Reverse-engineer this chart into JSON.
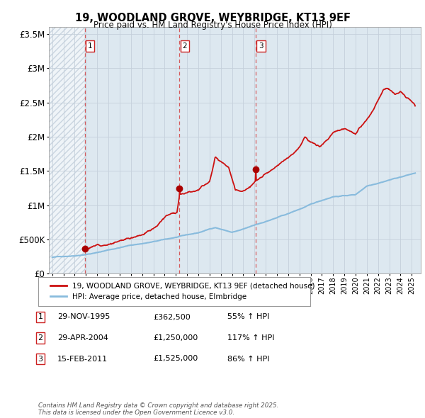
{
  "title": "19, WOODLAND GROVE, WEYBRIDGE, KT13 9EF",
  "subtitle": "Price paid vs. HM Land Registry's House Price Index (HPI)",
  "ylabel_ticks": [
    "£0",
    "£500K",
    "£1M",
    "£1.5M",
    "£2M",
    "£2.5M",
    "£3M",
    "£3.5M"
  ],
  "ytick_vals": [
    0,
    500000,
    1000000,
    1500000,
    2000000,
    2500000,
    3000000,
    3500000
  ],
  "ylim": [
    0,
    3600000
  ],
  "xlim_start": 1992.7,
  "xlim_end": 2025.8,
  "sale_dates_dec": [
    1995.91,
    2004.33,
    2011.12
  ],
  "sale_prices": [
    362500,
    1250000,
    1525000
  ],
  "sale_labels": [
    "1",
    "2",
    "3"
  ],
  "vline_color": "#d44444",
  "sale_dot_color": "#aa0000",
  "property_line_color": "#cc1111",
  "hpi_line_color": "#88bbdd",
  "legend_label_property": "19, WOODLAND GROVE, WEYBRIDGE, KT13 9EF (detached house)",
  "legend_label_hpi": "HPI: Average price, detached house, Elmbridge",
  "table_entries": [
    [
      "1",
      "29-NOV-1995",
      "£362,500",
      "55% ↑ HPI"
    ],
    [
      "2",
      "29-APR-2004",
      "£1,250,000",
      "117% ↑ HPI"
    ],
    [
      "3",
      "15-FEB-2011",
      "£1,525,000",
      "86% ↑ HPI"
    ]
  ],
  "footer": "Contains HM Land Registry data © Crown copyright and database right 2025.\nThis data is licensed under the Open Government Licence v3.0.",
  "background_color": "#ffffff",
  "grid_color": "#c5d0db",
  "plot_bg_color": "#dde8f0"
}
